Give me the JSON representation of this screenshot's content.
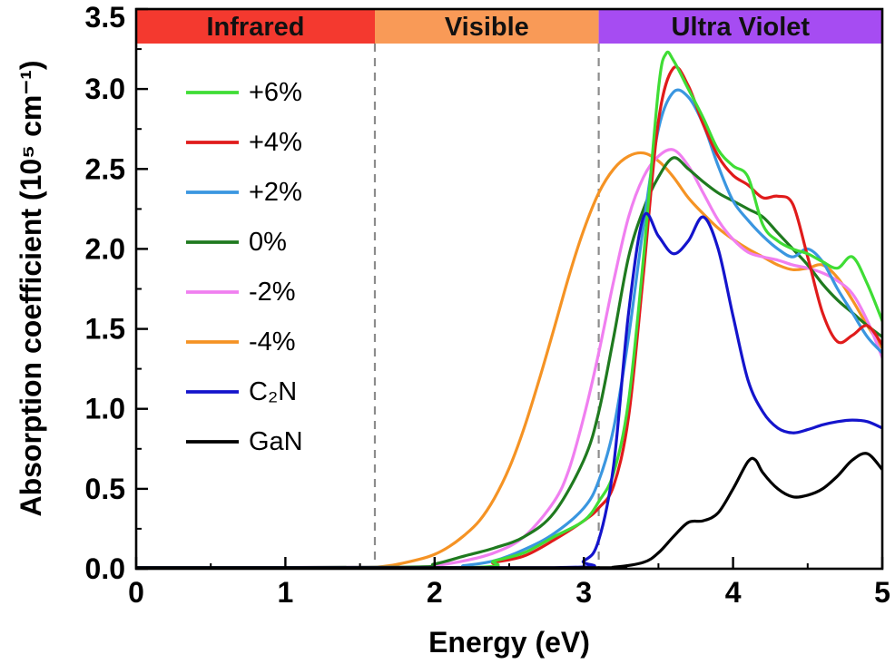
{
  "figure": {
    "background": "#ffffff"
  },
  "chart_data": {
    "type": "line",
    "title": "",
    "xlabel": "Energy (eV)",
    "ylabel": "Absorption coefficient (10⁵ cm⁻¹)",
    "xlim": [
      0,
      5
    ],
    "ylim": [
      0,
      3.5
    ],
    "x_ticks": [
      0,
      1,
      2,
      3,
      4,
      5
    ],
    "y_ticks": [
      0.0,
      0.5,
      1.0,
      1.5,
      2.0,
      2.5,
      3.0,
      3.5
    ],
    "x_minor_step": 0.5,
    "y_minor_step": 0.25,
    "grid": false,
    "legend_position": "upper-left-inside",
    "region_bands": [
      {
        "label": "Infrared",
        "x_start": 0,
        "x_end": 1.6,
        "color": "#f4392f"
      },
      {
        "label": "Visible",
        "x_start": 1.6,
        "x_end": 3.1,
        "color": "#f99a57"
      },
      {
        "label": "Ultra Violet",
        "x_start": 3.1,
        "x_end": 5,
        "color": "#a64cf2"
      }
    ],
    "divider_lines": {
      "x_values": [
        1.6,
        3.1
      ],
      "style": "dashed",
      "color": "#8c8c8c"
    },
    "draw_order": [
      "minus4",
      "minus2",
      "zero",
      "plus2",
      "plus4",
      "plus6",
      "c2n",
      "gan"
    ],
    "series": [
      {
        "id": "plus6",
        "name": "+6%",
        "color": "#3fdd35",
        "x": [
          0,
          2.2,
          2.4,
          2.6,
          2.8,
          3.0,
          3.1,
          3.2,
          3.3,
          3.4,
          3.5,
          3.55,
          3.6,
          3.7,
          3.8,
          3.9,
          4.0,
          4.1,
          4.2,
          4.3,
          4.4,
          4.5,
          4.6,
          4.7,
          4.8,
          4.9,
          5.0
        ],
        "y": [
          0,
          0,
          0.05,
          0.1,
          0.2,
          0.3,
          0.42,
          0.6,
          1.05,
          1.95,
          3.0,
          3.22,
          3.18,
          3.0,
          2.82,
          2.62,
          2.52,
          2.45,
          2.15,
          2.05,
          2.0,
          1.97,
          1.92,
          1.88,
          1.95,
          1.78,
          1.55
        ]
      },
      {
        "id": "plus4",
        "name": "+4%",
        "color": "#e01b1b",
        "x": [
          0,
          2.2,
          2.4,
          2.6,
          2.8,
          3.0,
          3.1,
          3.2,
          3.3,
          3.4,
          3.5,
          3.6,
          3.7,
          3.8,
          3.9,
          4.0,
          4.1,
          4.2,
          4.3,
          4.4,
          4.5,
          4.6,
          4.7,
          4.8,
          4.9,
          5.0
        ],
        "y": [
          0,
          0,
          0.04,
          0.08,
          0.18,
          0.3,
          0.38,
          0.52,
          0.95,
          1.85,
          2.8,
          3.13,
          3.02,
          2.78,
          2.58,
          2.46,
          2.4,
          2.32,
          2.33,
          2.28,
          1.95,
          1.6,
          1.42,
          1.46,
          1.52,
          1.4
        ]
      },
      {
        "id": "plus2",
        "name": "+2%",
        "color": "#3a96e0",
        "x": [
          0,
          2.0,
          2.2,
          2.4,
          2.6,
          2.8,
          3.0,
          3.1,
          3.2,
          3.3,
          3.4,
          3.5,
          3.6,
          3.7,
          3.8,
          3.9,
          4.0,
          4.1,
          4.2,
          4.3,
          4.4,
          4.5,
          4.6,
          4.7,
          4.8,
          4.9,
          5.0
        ],
        "y": [
          0,
          0,
          0.02,
          0.05,
          0.12,
          0.22,
          0.38,
          0.55,
          0.88,
          1.45,
          2.15,
          2.75,
          2.98,
          2.95,
          2.78,
          2.52,
          2.3,
          2.18,
          2.08,
          2.0,
          1.95,
          2.0,
          1.92,
          1.75,
          1.6,
          1.45,
          1.35
        ]
      },
      {
        "id": "zero",
        "name": "0%",
        "color": "#1f7a1f",
        "x": [
          0,
          1.8,
          2.0,
          2.2,
          2.4,
          2.6,
          2.8,
          3.0,
          3.1,
          3.2,
          3.3,
          3.4,
          3.5,
          3.6,
          3.7,
          3.8,
          3.9,
          4.0,
          4.1,
          4.2,
          4.3,
          4.4,
          4.5,
          4.6,
          4.7,
          4.8,
          4.9,
          5.0
        ],
        "y": [
          0,
          0.01,
          0.03,
          0.08,
          0.13,
          0.2,
          0.35,
          0.68,
          0.98,
          1.45,
          1.95,
          2.25,
          2.45,
          2.57,
          2.5,
          2.42,
          2.35,
          2.3,
          2.25,
          2.2,
          2.1,
          2.0,
          1.9,
          1.78,
          1.68,
          1.6,
          1.52,
          1.45
        ]
      },
      {
        "id": "minus2",
        "name": "-2%",
        "color": "#f07ff0",
        "x": [
          0,
          1.8,
          2.0,
          2.2,
          2.4,
          2.6,
          2.8,
          2.9,
          3.0,
          3.1,
          3.2,
          3.3,
          3.4,
          3.5,
          3.6,
          3.7,
          3.8,
          3.9,
          4.0,
          4.1,
          4.2,
          4.3,
          4.4,
          4.5,
          4.6,
          4.7,
          4.8,
          4.9,
          5.0
        ],
        "y": [
          0,
          0.01,
          0.02,
          0.05,
          0.1,
          0.2,
          0.42,
          0.62,
          0.95,
          1.35,
          1.8,
          2.2,
          2.45,
          2.58,
          2.62,
          2.52,
          2.35,
          2.18,
          2.06,
          1.98,
          1.95,
          1.93,
          1.9,
          1.88,
          1.85,
          1.8,
          1.72,
          1.55,
          1.32
        ]
      },
      {
        "id": "minus4",
        "name": "-4%",
        "color": "#f59324",
        "x": [
          0,
          1.0,
          1.5,
          1.7,
          1.9,
          2.0,
          2.1,
          2.2,
          2.3,
          2.4,
          2.5,
          2.6,
          2.7,
          2.8,
          2.9,
          3.0,
          3.1,
          3.2,
          3.3,
          3.4,
          3.5,
          3.6,
          3.7,
          3.8,
          3.9,
          4.0,
          4.1,
          4.2,
          4.3,
          4.4,
          4.5,
          4.6,
          4.7,
          4.8,
          4.9,
          5.0
        ],
        "y": [
          0,
          0,
          0,
          0.02,
          0.06,
          0.09,
          0.14,
          0.21,
          0.3,
          0.44,
          0.63,
          0.88,
          1.18,
          1.5,
          1.83,
          2.12,
          2.35,
          2.5,
          2.58,
          2.6,
          2.55,
          2.45,
          2.32,
          2.22,
          2.13,
          2.06,
          2.0,
          1.95,
          1.9,
          1.87,
          1.88,
          1.9,
          1.82,
          1.68,
          1.52,
          1.38
        ]
      },
      {
        "id": "c2n",
        "name": "C₂N",
        "color": "#1414cc",
        "x": [
          0,
          2.8,
          3.0,
          3.1,
          3.2,
          3.3,
          3.4,
          3.5,
          3.6,
          3.7,
          3.8,
          3.9,
          4.0,
          4.1,
          4.2,
          4.3,
          4.4,
          4.5,
          4.6,
          4.7,
          4.8,
          4.9,
          5.0
        ],
        "y": [
          0,
          0,
          0.05,
          0.18,
          0.65,
          1.6,
          2.2,
          2.08,
          1.97,
          2.05,
          2.2,
          2.0,
          1.58,
          1.18,
          0.98,
          0.88,
          0.85,
          0.87,
          0.9,
          0.92,
          0.93,
          0.92,
          0.88
        ]
      },
      {
        "id": "gan",
        "name": "GaN",
        "color": "#000000",
        "x": [
          0,
          3.0,
          3.2,
          3.4,
          3.5,
          3.6,
          3.7,
          3.8,
          3.9,
          4.0,
          4.1,
          4.15,
          4.2,
          4.3,
          4.4,
          4.5,
          4.6,
          4.7,
          4.8,
          4.9,
          5.0
        ],
        "y": [
          0,
          0,
          0.01,
          0.04,
          0.1,
          0.2,
          0.29,
          0.3,
          0.35,
          0.5,
          0.67,
          0.68,
          0.6,
          0.5,
          0.45,
          0.46,
          0.5,
          0.58,
          0.68,
          0.72,
          0.62
        ]
      }
    ]
  }
}
